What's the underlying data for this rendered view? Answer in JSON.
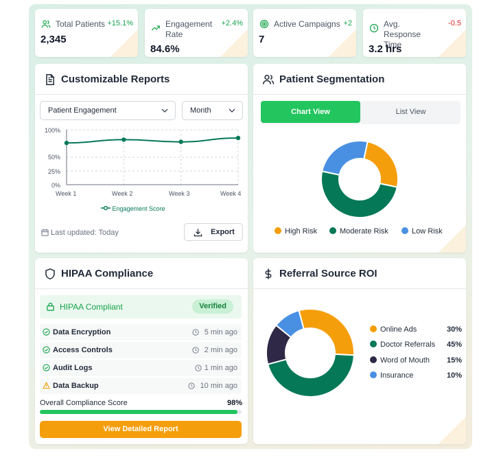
{
  "stats": [
    {
      "label": "Total Patients",
      "value": "2,345",
      "delta": "+15.1%",
      "icon": "users-icon"
    },
    {
      "label": "Engagement Rate",
      "value": "84.6%",
      "delta": "+2.4%",
      "icon": "trending-up-icon"
    },
    {
      "label": "Active Campaigns",
      "value": "7",
      "delta": "+2",
      "icon": "target-icon"
    },
    {
      "label": "Avg. Response Time",
      "value": "3.2 hrs",
      "delta": "-0.5",
      "icon": "clock-icon"
    }
  ],
  "reports": {
    "title": "Customizable Reports",
    "metric_select": "Patient Engagement",
    "period_select": "Month",
    "last_updated": "Last updated: Today",
    "export_label": "Export"
  },
  "segmentation": {
    "title": "Patient Segmentation",
    "chart_view": "Chart View",
    "list_view": "List View"
  },
  "hipaa": {
    "title": "HIPAA Compliance",
    "status": "HIPAA Compliant",
    "badge": "Verified",
    "items": [
      {
        "label": "Data Encryption",
        "ago": "5 min ago",
        "state": "ok"
      },
      {
        "label": "Access Controls",
        "ago": "2 min ago",
        "state": "ok"
      },
      {
        "label": "Audit Logs",
        "ago": "1 min ago",
        "state": "ok"
      },
      {
        "label": "Data Backup",
        "ago": "10 min ago",
        "state": "warning"
      }
    ],
    "score_label": "Overall Compliance Score",
    "score_value": "98%",
    "score_fraction": 0.98,
    "button_label": "View Detailed Report"
  },
  "roi": {
    "title": "Referral Source ROI"
  },
  "colors": {
    "green": "#22c55e",
    "dark_green": "#047857",
    "orange": "#f59e0b",
    "blue": "#4a90e2",
    "navy": "#2f2846",
    "red": "#dc2626"
  },
  "chart_data": [
    {
      "type": "line",
      "categories": [
        "Week 1",
        "Week 2",
        "Week 3",
        "Week 4"
      ],
      "series": [
        {
          "name": "Engagement Score",
          "values": [
            76,
            82,
            78,
            85
          ]
        }
      ],
      "yticks": [
        "0%",
        "25%",
        "50%",
        "100%"
      ],
      "ylim": [
        0,
        100
      ],
      "grid": true,
      "legend": "bottom"
    },
    {
      "type": "pie",
      "donut": true,
      "labels": [
        "High Risk",
        "Moderate Risk",
        "Low Risk"
      ],
      "values": [
        25,
        50,
        25
      ],
      "colors": [
        "#f59e0b",
        "#047857",
        "#4a90e2"
      ],
      "legend": "bottom"
    },
    {
      "type": "pie",
      "donut": true,
      "labels": [
        "Online Ads",
        "Doctor Referrals",
        "Word of Mouth",
        "Insurance"
      ],
      "values": [
        30,
        45,
        15,
        10
      ],
      "value_labels": [
        "30%",
        "45%",
        "15%",
        "10%"
      ],
      "colors": [
        "#f59e0b",
        "#047857",
        "#2f2846",
        "#4a90e2"
      ],
      "legend": "right"
    }
  ]
}
